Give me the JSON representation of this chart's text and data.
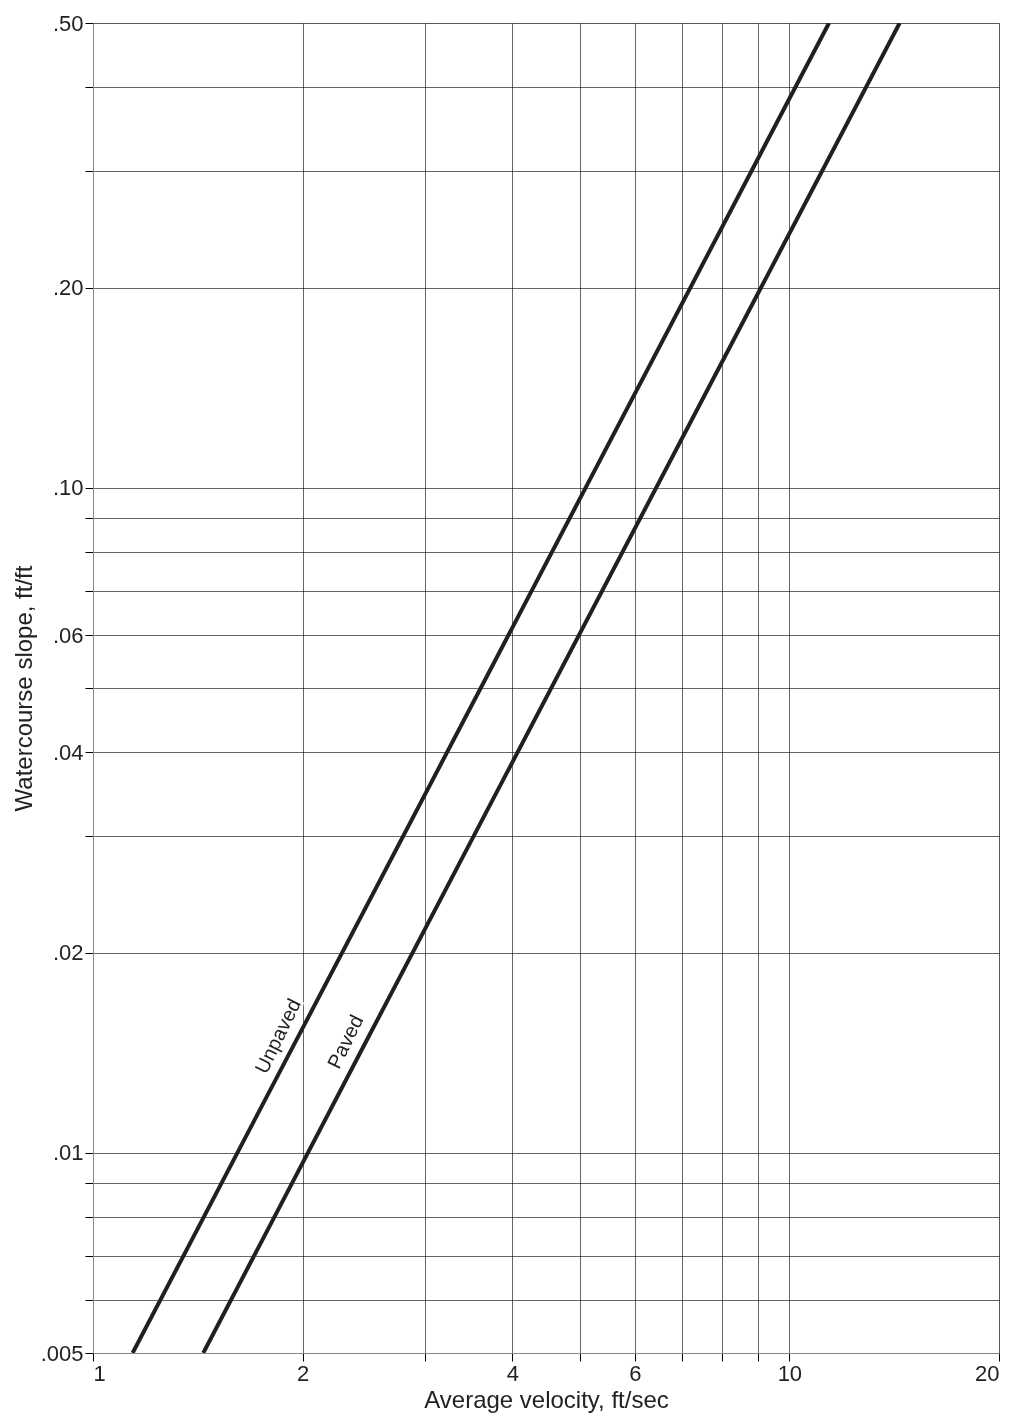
{
  "chart_data": {
    "type": "line",
    "xlabel": "Average velocity, ft/sec",
    "ylabel": "Watercourse slope, ft/ft",
    "log": "xy",
    "grid": true,
    "legend": false,
    "marker": "none",
    "line_style": "solid",
    "xlim": [
      1,
      20
    ],
    "ylim": [
      0.005,
      0.5
    ],
    "xticks": [
      1,
      2,
      {
        "value": 3,
        "label": null
      },
      4,
      {
        "value": 5,
        "label": null
      },
      6,
      {
        "value": 7,
        "label": null
      },
      {
        "value": 8,
        "label": null
      },
      {
        "value": 9,
        "label": null
      },
      10,
      20
    ],
    "yticks": [
      {
        "value": 0.005,
        "label": ".005"
      },
      {
        "value": 0.006,
        "label": null
      },
      {
        "value": 0.007,
        "label": null
      },
      {
        "value": 0.008,
        "label": null
      },
      {
        "value": 0.009,
        "label": null
      },
      {
        "value": 0.01,
        "label": ".01"
      },
      {
        "value": 0.02,
        "label": ".02"
      },
      {
        "value": 0.03,
        "label": null
      },
      {
        "value": 0.04,
        "label": ".04"
      },
      {
        "value": 0.05,
        "label": null
      },
      {
        "value": 0.06,
        "label": ".06"
      },
      {
        "value": 0.07,
        "label": null
      },
      {
        "value": 0.08,
        "label": null
      },
      {
        "value": 0.09,
        "label": null
      },
      {
        "value": 0.1,
        "label": ".10"
      },
      {
        "value": 0.2,
        "label": ".20"
      },
      {
        "value": 0.3,
        "label": null
      },
      {
        "value": 0.4,
        "label": null
      },
      {
        "value": 0.5,
        "label": ".50"
      }
    ],
    "series": [
      {
        "name": "Unpaved",
        "color": "#231f20",
        "x": [
          1.14,
          2.0,
          11.4
        ],
        "values": [
          0.005,
          0.0154,
          0.5
        ]
      },
      {
        "name": "Paved",
        "color": "#231f20",
        "x": [
          1.44,
          2.5,
          14.4
        ],
        "values": [
          0.005,
          0.0151,
          0.5
        ]
      }
    ]
  }
}
